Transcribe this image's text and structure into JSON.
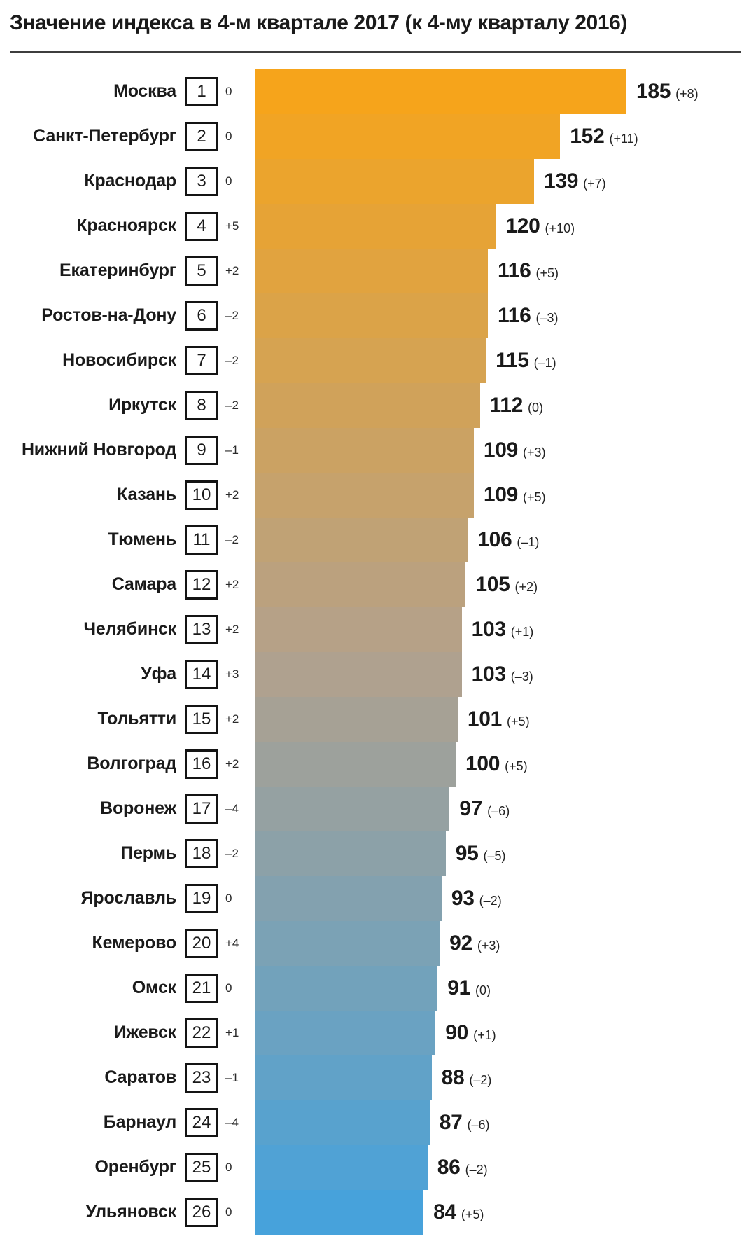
{
  "title": "Значение индекса в 4-м квартале 2017 (к 4-му кварталу 2016)",
  "colors": {
    "text": "#1A1A1A",
    "divider": "#3D3D3D",
    "rank_box_border": "#141414",
    "bar_gradient_stops": [
      "#F6A41B",
      "#B3A18C",
      "#47A2DB"
    ]
  },
  "chart_data": {
    "type": "bar",
    "orientation": "horizontal",
    "title": "Значение индекса в 4-м квартале 2017 (к 4-му кварталу 2016)",
    "value_axis_max": 185,
    "legend": "none",
    "grid": false,
    "rows": [
      {
        "city": "Москва",
        "rank": 1,
        "rank_change": "0",
        "value": 185,
        "value_change": "(+8)"
      },
      {
        "city": "Санкт-Петербург",
        "rank": 2,
        "rank_change": "0",
        "value": 152,
        "value_change": "(+11)"
      },
      {
        "city": "Краснодар",
        "rank": 3,
        "rank_change": "0",
        "value": 139,
        "value_change": "(+7)"
      },
      {
        "city": "Красноярск",
        "rank": 4,
        "rank_change": "+5",
        "value": 120,
        "value_change": "(+10)"
      },
      {
        "city": "Екатеринбург",
        "rank": 5,
        "rank_change": "+2",
        "value": 116,
        "value_change": "(+5)"
      },
      {
        "city": "Ростов-на-Дону",
        "rank": 6,
        "rank_change": "–2",
        "value": 116,
        "value_change": "(–3)"
      },
      {
        "city": "Новосибирск",
        "rank": 7,
        "rank_change": "–2",
        "value": 115,
        "value_change": "(–1)"
      },
      {
        "city": "Иркутск",
        "rank": 8,
        "rank_change": "–2",
        "value": 112,
        "value_change": "(0)"
      },
      {
        "city": "Нижний Новгород",
        "rank": 9,
        "rank_change": "–1",
        "value": 109,
        "value_change": "(+3)"
      },
      {
        "city": "Казань",
        "rank": 10,
        "rank_change": "+2",
        "value": 109,
        "value_change": "(+5)"
      },
      {
        "city": "Тюмень",
        "rank": 11,
        "rank_change": "–2",
        "value": 106,
        "value_change": "(–1)"
      },
      {
        "city": "Самара",
        "rank": 12,
        "rank_change": "+2",
        "value": 105,
        "value_change": "(+2)"
      },
      {
        "city": "Челябинск",
        "rank": 13,
        "rank_change": "+2",
        "value": 103,
        "value_change": "(+1)"
      },
      {
        "city": "Уфа",
        "rank": 14,
        "rank_change": "+3",
        "value": 103,
        "value_change": "(–3)"
      },
      {
        "city": "Тольятти",
        "rank": 15,
        "rank_change": "+2",
        "value": 101,
        "value_change": "(+5)"
      },
      {
        "city": "Волгоград",
        "rank": 16,
        "rank_change": "+2",
        "value": 100,
        "value_change": "(+5)"
      },
      {
        "city": "Воронеж",
        "rank": 17,
        "rank_change": "–4",
        "value": 97,
        "value_change": "(–6)"
      },
      {
        "city": "Пермь",
        "rank": 18,
        "rank_change": "–2",
        "value": 95,
        "value_change": "(–5)"
      },
      {
        "city": "Ярославль",
        "rank": 19,
        "rank_change": "0",
        "value": 93,
        "value_change": "(–2)"
      },
      {
        "city": "Кемерово",
        "rank": 20,
        "rank_change": "+4",
        "value": 92,
        "value_change": "(+3)"
      },
      {
        "city": "Омск",
        "rank": 21,
        "rank_change": "0",
        "value": 91,
        "value_change": "(0)"
      },
      {
        "city": "Ижевск",
        "rank": 22,
        "rank_change": "+1",
        "value": 90,
        "value_change": "(+1)"
      },
      {
        "city": "Саратов",
        "rank": 23,
        "rank_change": "–1",
        "value": 88,
        "value_change": "(–2)"
      },
      {
        "city": "Барнаул",
        "rank": 24,
        "rank_change": "–4",
        "value": 87,
        "value_change": "(–6)"
      },
      {
        "city": "Оренбург",
        "rank": 25,
        "rank_change": "0",
        "value": 86,
        "value_change": "(–2)"
      },
      {
        "city": "Ульяновск",
        "rank": 26,
        "rank_change": "0",
        "value": 84,
        "value_change": "(+5)"
      }
    ]
  }
}
